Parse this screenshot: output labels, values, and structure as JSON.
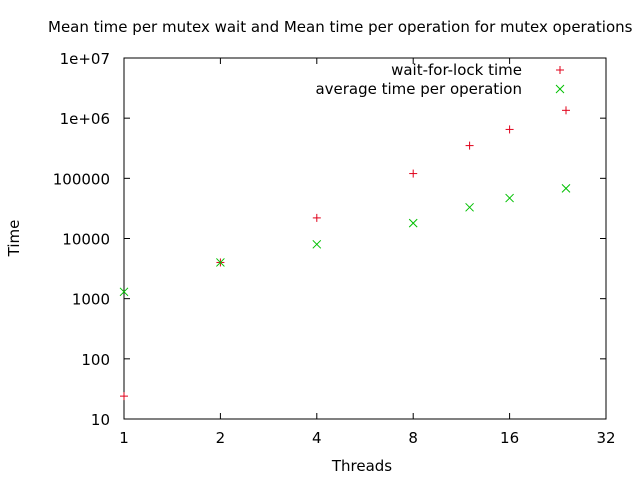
{
  "chart_data": {
    "type": "scatter",
    "title": "Mean time per mutex wait and Mean time per operation for mutex operations",
    "xlabel": "Threads",
    "ylabel": "Time",
    "x_scale": "log2",
    "y_scale": "log10",
    "xlim": [
      1,
      32
    ],
    "ylim": [
      10,
      10000000
    ],
    "x_ticks": [
      1,
      2,
      4,
      8,
      16,
      32
    ],
    "x_tick_labels": [
      "1",
      "2",
      "4",
      "8",
      "16",
      "32"
    ],
    "y_ticks": [
      10,
      100,
      1000,
      10000,
      100000,
      1000000,
      10000000
    ],
    "y_tick_labels": [
      "10",
      "100",
      "1000",
      "10000",
      "100000",
      "1e+06",
      "1e+07"
    ],
    "grid": false,
    "legend_position": "top-right",
    "series": [
      {
        "name": "wait-for-lock time",
        "marker": "plus",
        "color": "#e0001a",
        "points": [
          {
            "x": 1,
            "y": 24
          },
          {
            "x": 2,
            "y": 4000
          },
          {
            "x": 4,
            "y": 22000
          },
          {
            "x": 8,
            "y": 120000
          },
          {
            "x": 12,
            "y": 350000
          },
          {
            "x": 16,
            "y": 650000
          },
          {
            "x": 24,
            "y": 1350000
          }
        ]
      },
      {
        "name": "average time per operation",
        "marker": "cross",
        "color": "#00c000",
        "points": [
          {
            "x": 1,
            "y": 1300
          },
          {
            "x": 2,
            "y": 4000
          },
          {
            "x": 4,
            "y": 8000
          },
          {
            "x": 8,
            "y": 18000
          },
          {
            "x": 12,
            "y": 33000
          },
          {
            "x": 16,
            "y": 47000
          },
          {
            "x": 24,
            "y": 68000
          }
        ]
      }
    ]
  }
}
